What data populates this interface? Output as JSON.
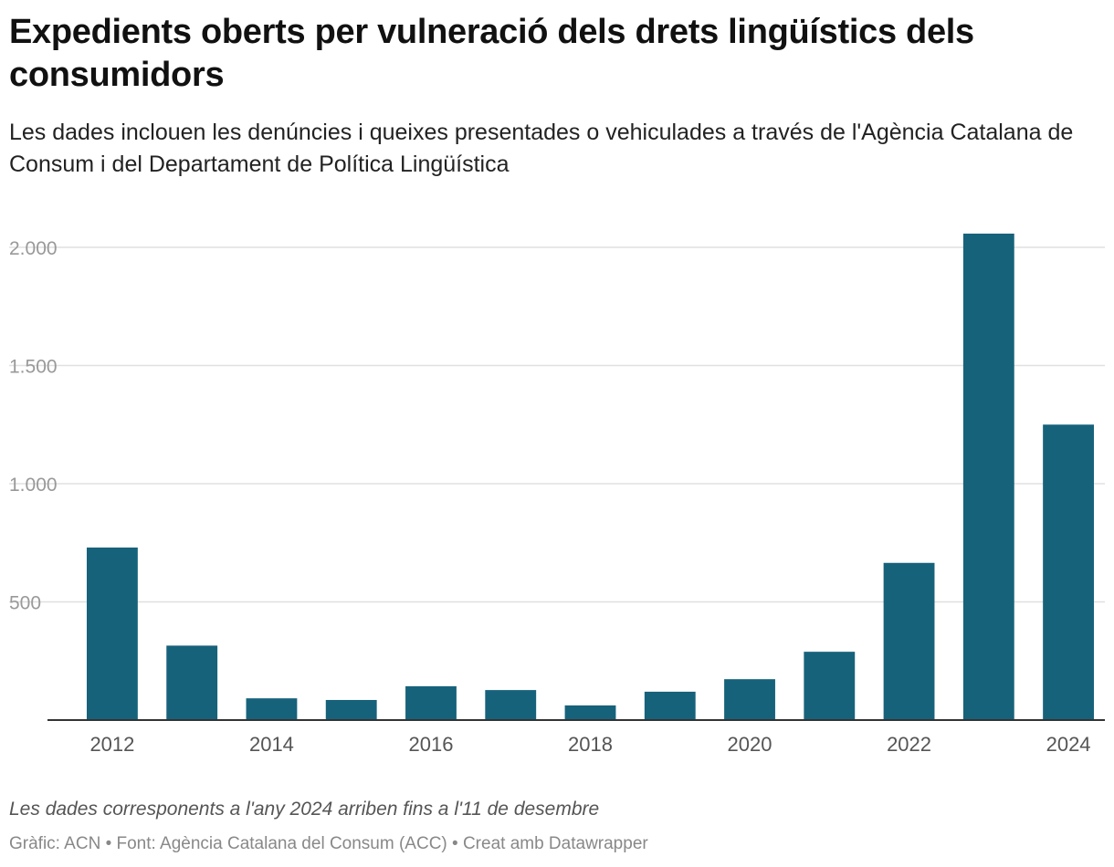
{
  "header": {
    "title": "Expedients oberts per vulneració dels drets lingüístics dels consumidors",
    "subtitle": "Les dades inclouen les denúncies i queixes presentades o vehiculades a través de l'Agència Catalana de Consum i del Departament de Política Lingüística"
  },
  "footer": {
    "note": "Les dades corresponents a l'any 2024 arriben fins a l'11 de desembre",
    "source": "Gràfic: ACN • Font: Agència Catalana del Consum (ACC) • Creat amb Datawrapper"
  },
  "colors": {
    "bar": "#17627b",
    "grid": "#e0e0e0",
    "axis": "#333333",
    "tick_label": "#999999",
    "x_label": "#555555"
  },
  "chart_data": {
    "type": "bar",
    "categories": [
      "2012",
      "2013",
      "2014",
      "2015",
      "2016",
      "2017",
      "2018",
      "2019",
      "2020",
      "2021",
      "2022",
      "2023",
      "2024"
    ],
    "values": [
      730,
      315,
      92,
      85,
      143,
      127,
      62,
      120,
      173,
      289,
      665,
      2058,
      1250
    ],
    "x_tick_labels": [
      "2012",
      "2014",
      "2016",
      "2018",
      "2020",
      "2022",
      "2024"
    ],
    "y_ticks": [
      500,
      1000,
      1500,
      2000
    ],
    "y_tick_labels": [
      "500",
      "1.000",
      "1.500",
      "2.000"
    ],
    "ylim": [
      0,
      2000
    ],
    "grid": true,
    "title": "Expedients oberts per vulneració dels drets lingüístics dels consumidors",
    "xlabel": "",
    "ylabel": ""
  }
}
